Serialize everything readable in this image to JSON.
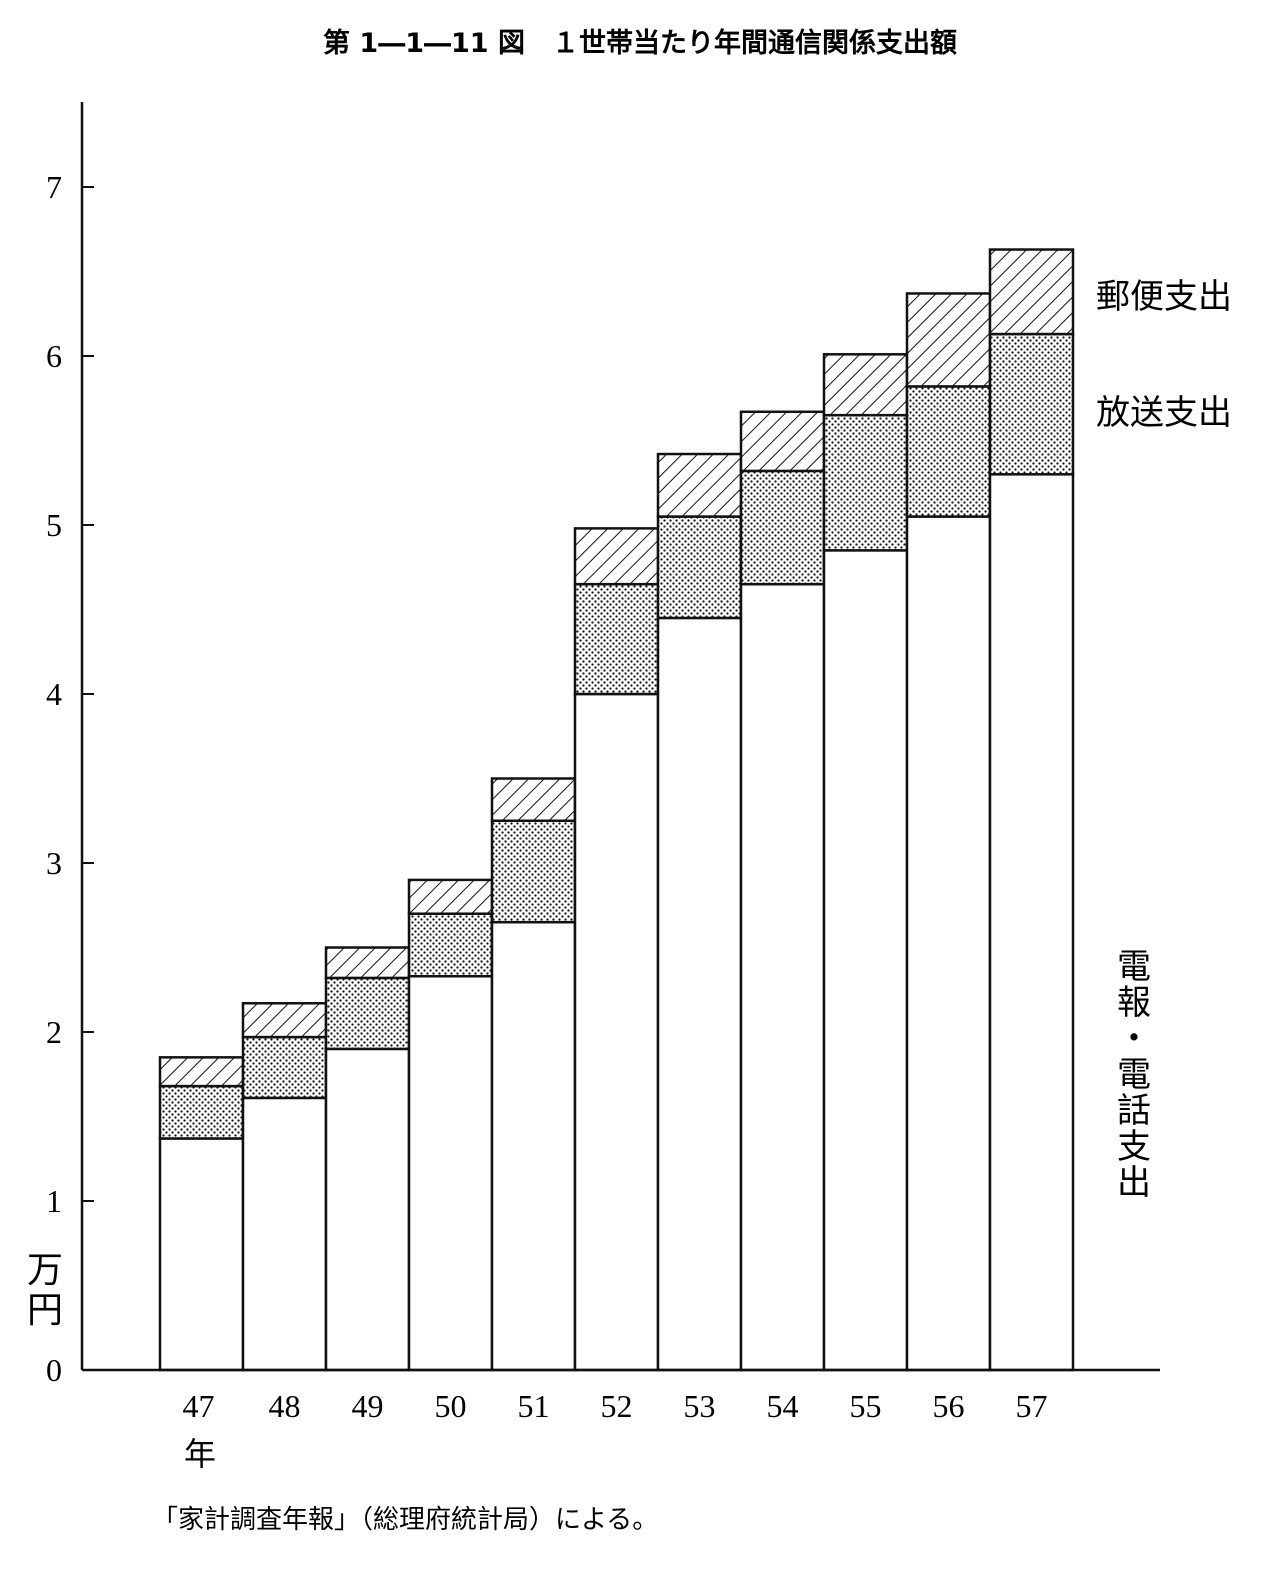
{
  "title": "第 1―1―11 図　１世帯当たり年間通信関係支出額",
  "source_note": "「家計調査年報」（総理府統計局）による。",
  "colors": {
    "ink": "#111111",
    "paper": "#ffffff"
  },
  "chart_data": {
    "type": "bar",
    "stacked": true,
    "categories": [
      "47",
      "48",
      "49",
      "50",
      "51",
      "52",
      "53",
      "54",
      "55",
      "56",
      "57"
    ],
    "x_unit_label": "年",
    "y_unit_label": "万円",
    "ylim": [
      0,
      7.5
    ],
    "yticks": [
      0,
      1,
      2,
      3,
      4,
      5,
      6,
      7
    ],
    "grid": false,
    "series": [
      {
        "name": "電報・電話支出",
        "pattern": "plain",
        "values": [
          1.37,
          1.61,
          1.9,
          2.33,
          2.65,
          4.0,
          4.45,
          4.65,
          4.85,
          5.05,
          5.3
        ]
      },
      {
        "name": "放送支出",
        "pattern": "dotted",
        "values": [
          0.31,
          0.36,
          0.42,
          0.37,
          0.6,
          0.65,
          0.6,
          0.67,
          0.8,
          0.77,
          0.83
        ]
      },
      {
        "name": "郵便支出",
        "pattern": "hatched",
        "values": [
          0.17,
          0.2,
          0.18,
          0.2,
          0.25,
          0.33,
          0.37,
          0.35,
          0.36,
          0.55,
          0.5
        ]
      }
    ],
    "legend_placement": "right"
  }
}
